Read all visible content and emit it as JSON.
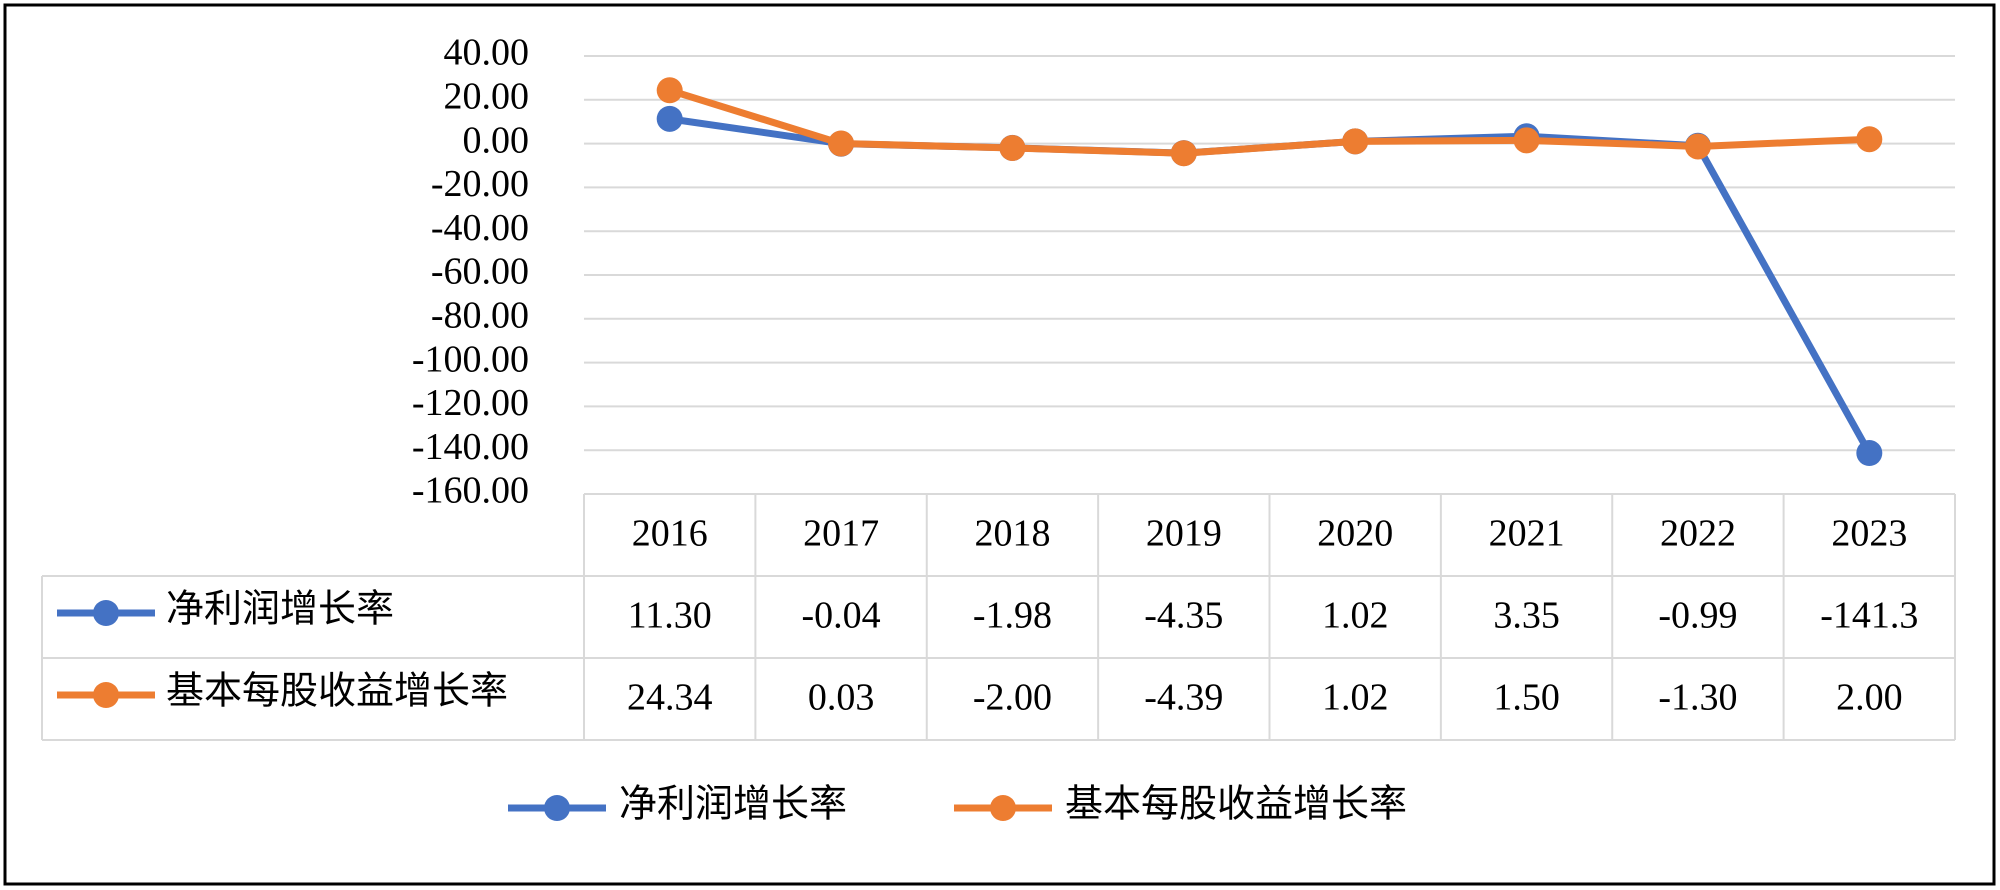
{
  "chart_data": {
    "type": "line",
    "categories": [
      "2016",
      "2017",
      "2018",
      "2019",
      "2020",
      "2021",
      "2022",
      "2023"
    ],
    "series": [
      {
        "name": "净利润增长率",
        "color": "#4472c4",
        "values": [
          11.3,
          -0.04,
          -1.98,
          -4.35,
          1.02,
          3.35,
          -0.99,
          -141.3
        ],
        "value_labels": [
          "11.30",
          "-0.04",
          "-1.98",
          "-4.35",
          "1.02",
          "3.35",
          "-0.99",
          "-141.3"
        ]
      },
      {
        "name": "基本每股收益增长率",
        "color": "#ed7d31",
        "values": [
          24.34,
          0.03,
          -2,
          -4.39,
          1.02,
          1.5,
          -1.3,
          2
        ],
        "value_labels": [
          "24.34",
          "0.03",
          "-2.00",
          "-4.39",
          "1.02",
          "1.50",
          "-1.30",
          "2.00"
        ]
      }
    ],
    "ylim": [
      -160,
      40
    ],
    "yticks": [
      {
        "value": 40,
        "label": "40.00"
      },
      {
        "value": 20,
        "label": "20.00"
      },
      {
        "value": 0,
        "label": "0.00"
      },
      {
        "value": -20,
        "label": "-20.00"
      },
      {
        "value": -40,
        "label": "-40.00"
      },
      {
        "value": -60,
        "label": "-60.00"
      },
      {
        "value": -80,
        "label": "-80.00"
      },
      {
        "value": -100,
        "label": "-100.00"
      },
      {
        "value": -120,
        "label": "-120.00"
      },
      {
        "value": -140,
        "label": "-140.00"
      },
      {
        "value": -160,
        "label": "-160.00"
      }
    ],
    "grid": true,
    "legend": "bottom",
    "data_table": true
  }
}
